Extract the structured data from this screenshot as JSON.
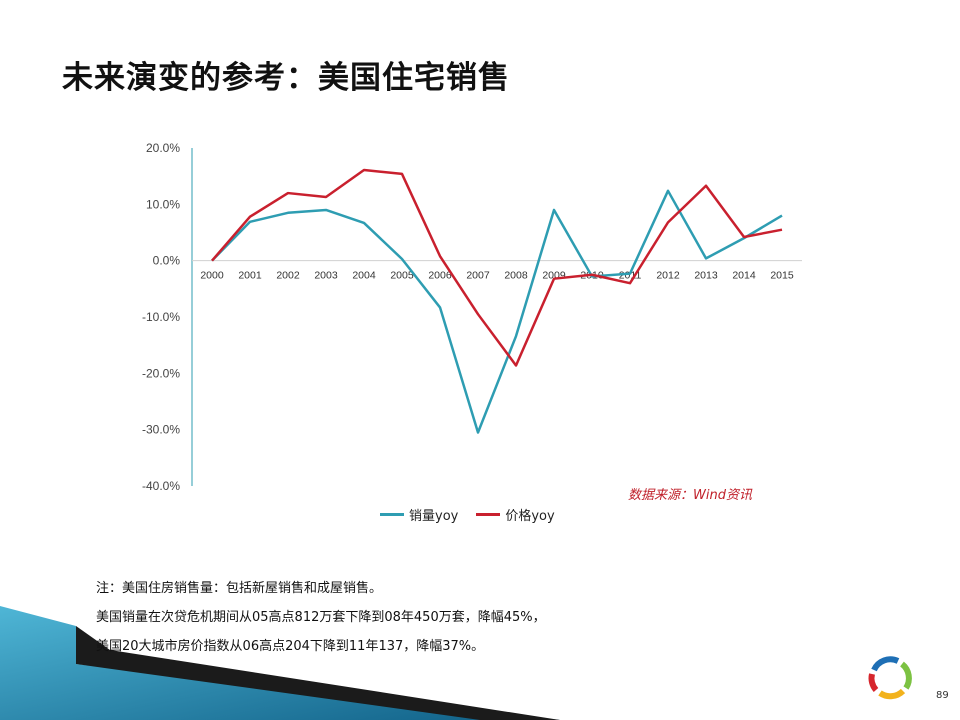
{
  "slide": {
    "title": "未来演变的参考：美国住宅销售",
    "source": "数据来源：Wind资讯",
    "page_number": "89",
    "notes": [
      "注：美国住房销售量：包括新屋销售和成屋销售。",
      "美国销量在次贷危机期间从05高点812万套下降到08年450万套，降幅45%，",
      "美国20大城市房价指数从06高点204下降到11年137，降幅37%。"
    ]
  },
  "chart_data": {
    "type": "line",
    "categories": [
      "2000",
      "2001",
      "2002",
      "2003",
      "2004",
      "2005",
      "2006",
      "2007",
      "2008",
      "2009",
      "2010",
      "2011",
      "2012",
      "2013",
      "2014",
      "2015"
    ],
    "y_ticks": [
      "20.0%",
      "10.0%",
      "0.0%",
      "-10.0%",
      "-20.0%",
      "-30.0%",
      "-40.0%"
    ],
    "ylim": [
      -40,
      20
    ],
    "grid": false,
    "legend_position": "bottom",
    "series": [
      {
        "name": "销量yoy",
        "color": "#2e9db2",
        "values": [
          0.0,
          6.9,
          8.5,
          9.0,
          6.7,
          0.3,
          -8.3,
          -30.5,
          -13.4,
          9.0,
          -2.8,
          -2.3,
          12.4,
          0.4,
          4.0,
          8.0
        ]
      },
      {
        "name": "价格yoy",
        "color": "#c9202e",
        "values": [
          0.0,
          7.8,
          12.0,
          11.3,
          16.1,
          15.4,
          0.8,
          -9.5,
          -18.6,
          -3.2,
          -2.5,
          -4.0,
          6.8,
          13.3,
          4.2,
          5.5
        ]
      }
    ]
  }
}
